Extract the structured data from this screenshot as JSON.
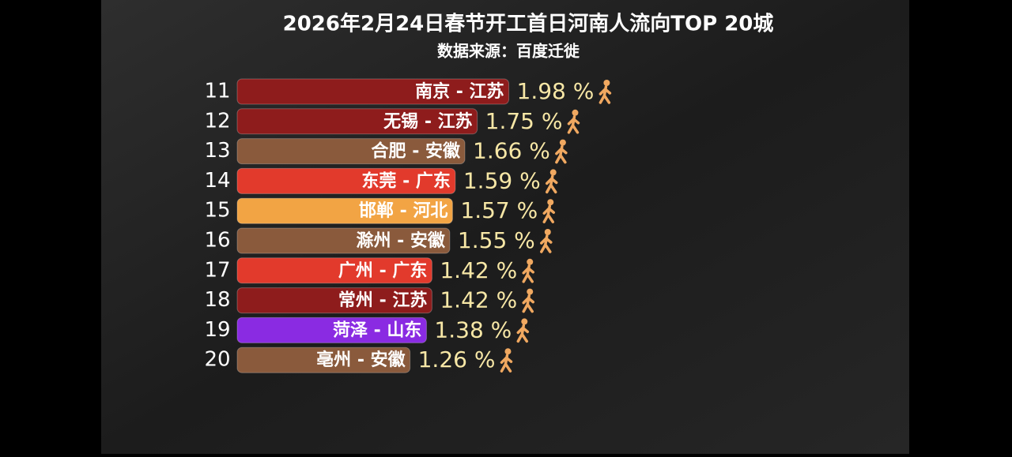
{
  "chart_data": {
    "type": "bar",
    "orientation": "horizontal",
    "title": "2026年2月24日春节开工首日河南人流向TOP 20城",
    "subtitle": "数据来源：百度迁徙",
    "ranks": [
      11,
      12,
      13,
      14,
      15,
      16,
      17,
      18,
      19,
      20
    ],
    "categories": [
      "南京 - 江苏",
      "无锡 - 江苏",
      "合肥 - 安徽",
      "东莞 - 广东",
      "邯郸 - 河北",
      "滁州 - 安徽",
      "广州 - 广东",
      "常州 - 江苏",
      "菏泽 - 山东",
      "亳州 - 安徽"
    ],
    "values": [
      1.98,
      1.75,
      1.66,
      1.59,
      1.57,
      1.55,
      1.42,
      1.42,
      1.38,
      1.26
    ],
    "value_labels": [
      "1.98 %",
      "1.75 %",
      "1.66 %",
      "1.59 %",
      "1.57 %",
      "1.55 %",
      "1.42 %",
      "1.42 %",
      "1.38 %",
      "1.26 %"
    ],
    "colors": [
      "#8e1c1c",
      "#8e1c1c",
      "#8a5a3c",
      "#e23a2c",
      "#f2a444",
      "#8a5a3c",
      "#e23a2c",
      "#8e1c1c",
      "#8a2be2",
      "#8a5a3c"
    ]
  }
}
